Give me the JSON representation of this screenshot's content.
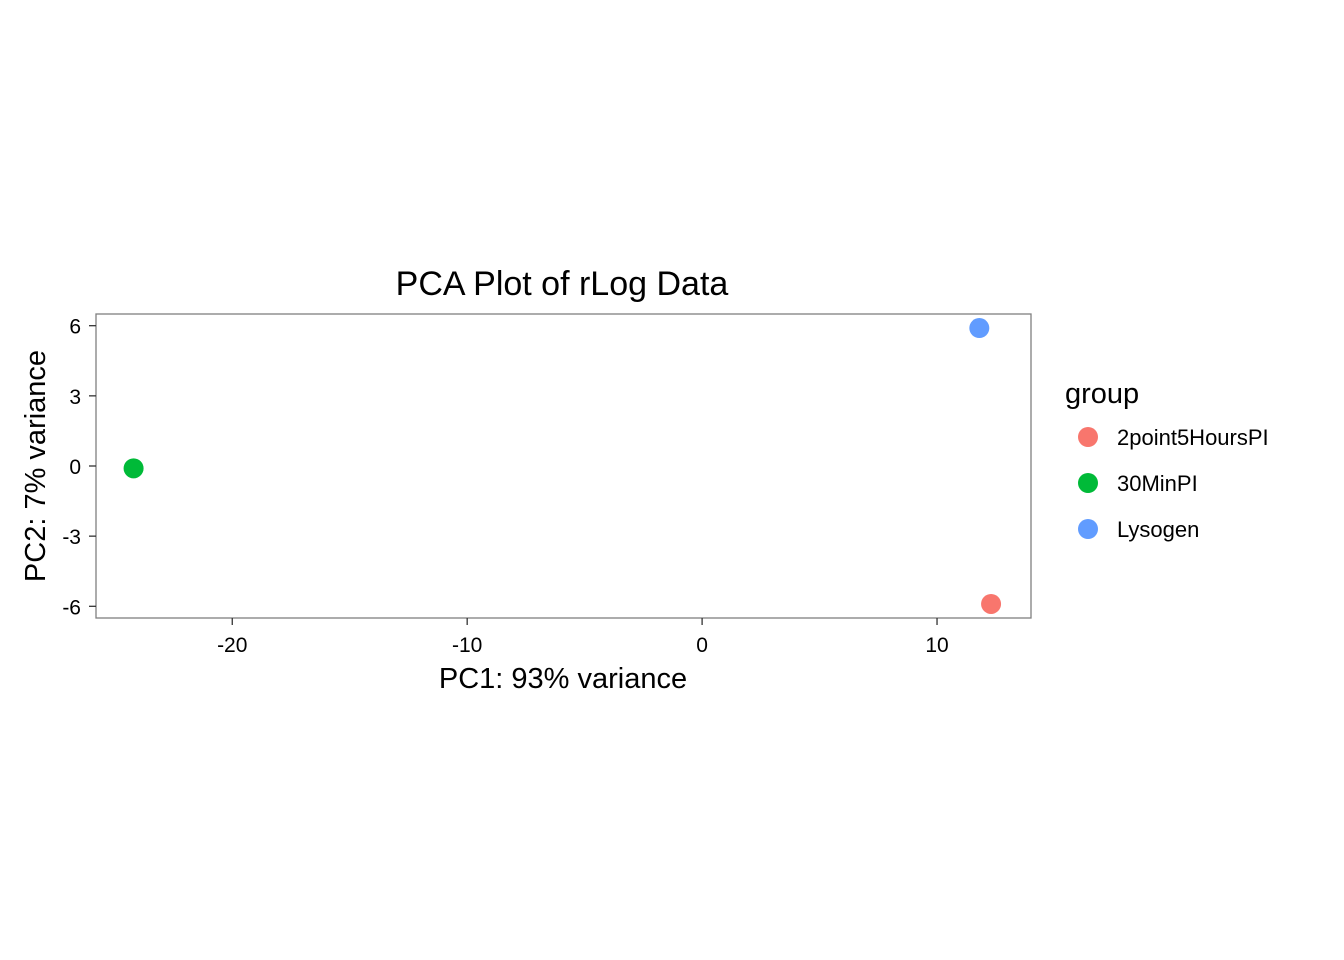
{
  "chart_data": {
    "type": "scatter",
    "title": "PCA Plot of rLog Data",
    "xlabel": "PC1: 93% variance",
    "ylabel": "PC2: 7% variance",
    "xlim": [
      -25.8,
      14
    ],
    "ylim": [
      -6.5,
      6.5
    ],
    "xticks": [
      -20,
      -10,
      0,
      10
    ],
    "xtick_labels": [
      "-20",
      "-10",
      "0",
      "10"
    ],
    "yticks": [
      6,
      3,
      0,
      -3,
      -6
    ],
    "ytick_labels": [
      "6",
      "3",
      "0",
      "-3",
      "-6"
    ],
    "grid": false,
    "legend": {
      "title": "group",
      "position": "right",
      "entries": [
        {
          "label": "2point5HoursPI",
          "color": "#F8766D"
        },
        {
          "label": "30MinPI",
          "color": "#00BA38"
        },
        {
          "label": "Lysogen",
          "color": "#619CFF"
        }
      ]
    },
    "series": [
      {
        "name": "2point5HoursPI",
        "color": "#F8766D",
        "points": [
          {
            "x": 12.3,
            "y": -5.9
          }
        ]
      },
      {
        "name": "30MinPI",
        "color": "#00BA38",
        "points": [
          {
            "x": -24.2,
            "y": -0.1
          }
        ]
      },
      {
        "name": "Lysogen",
        "color": "#619CFF",
        "points": [
          {
            "x": 11.8,
            "y": 5.9
          }
        ]
      }
    ]
  }
}
